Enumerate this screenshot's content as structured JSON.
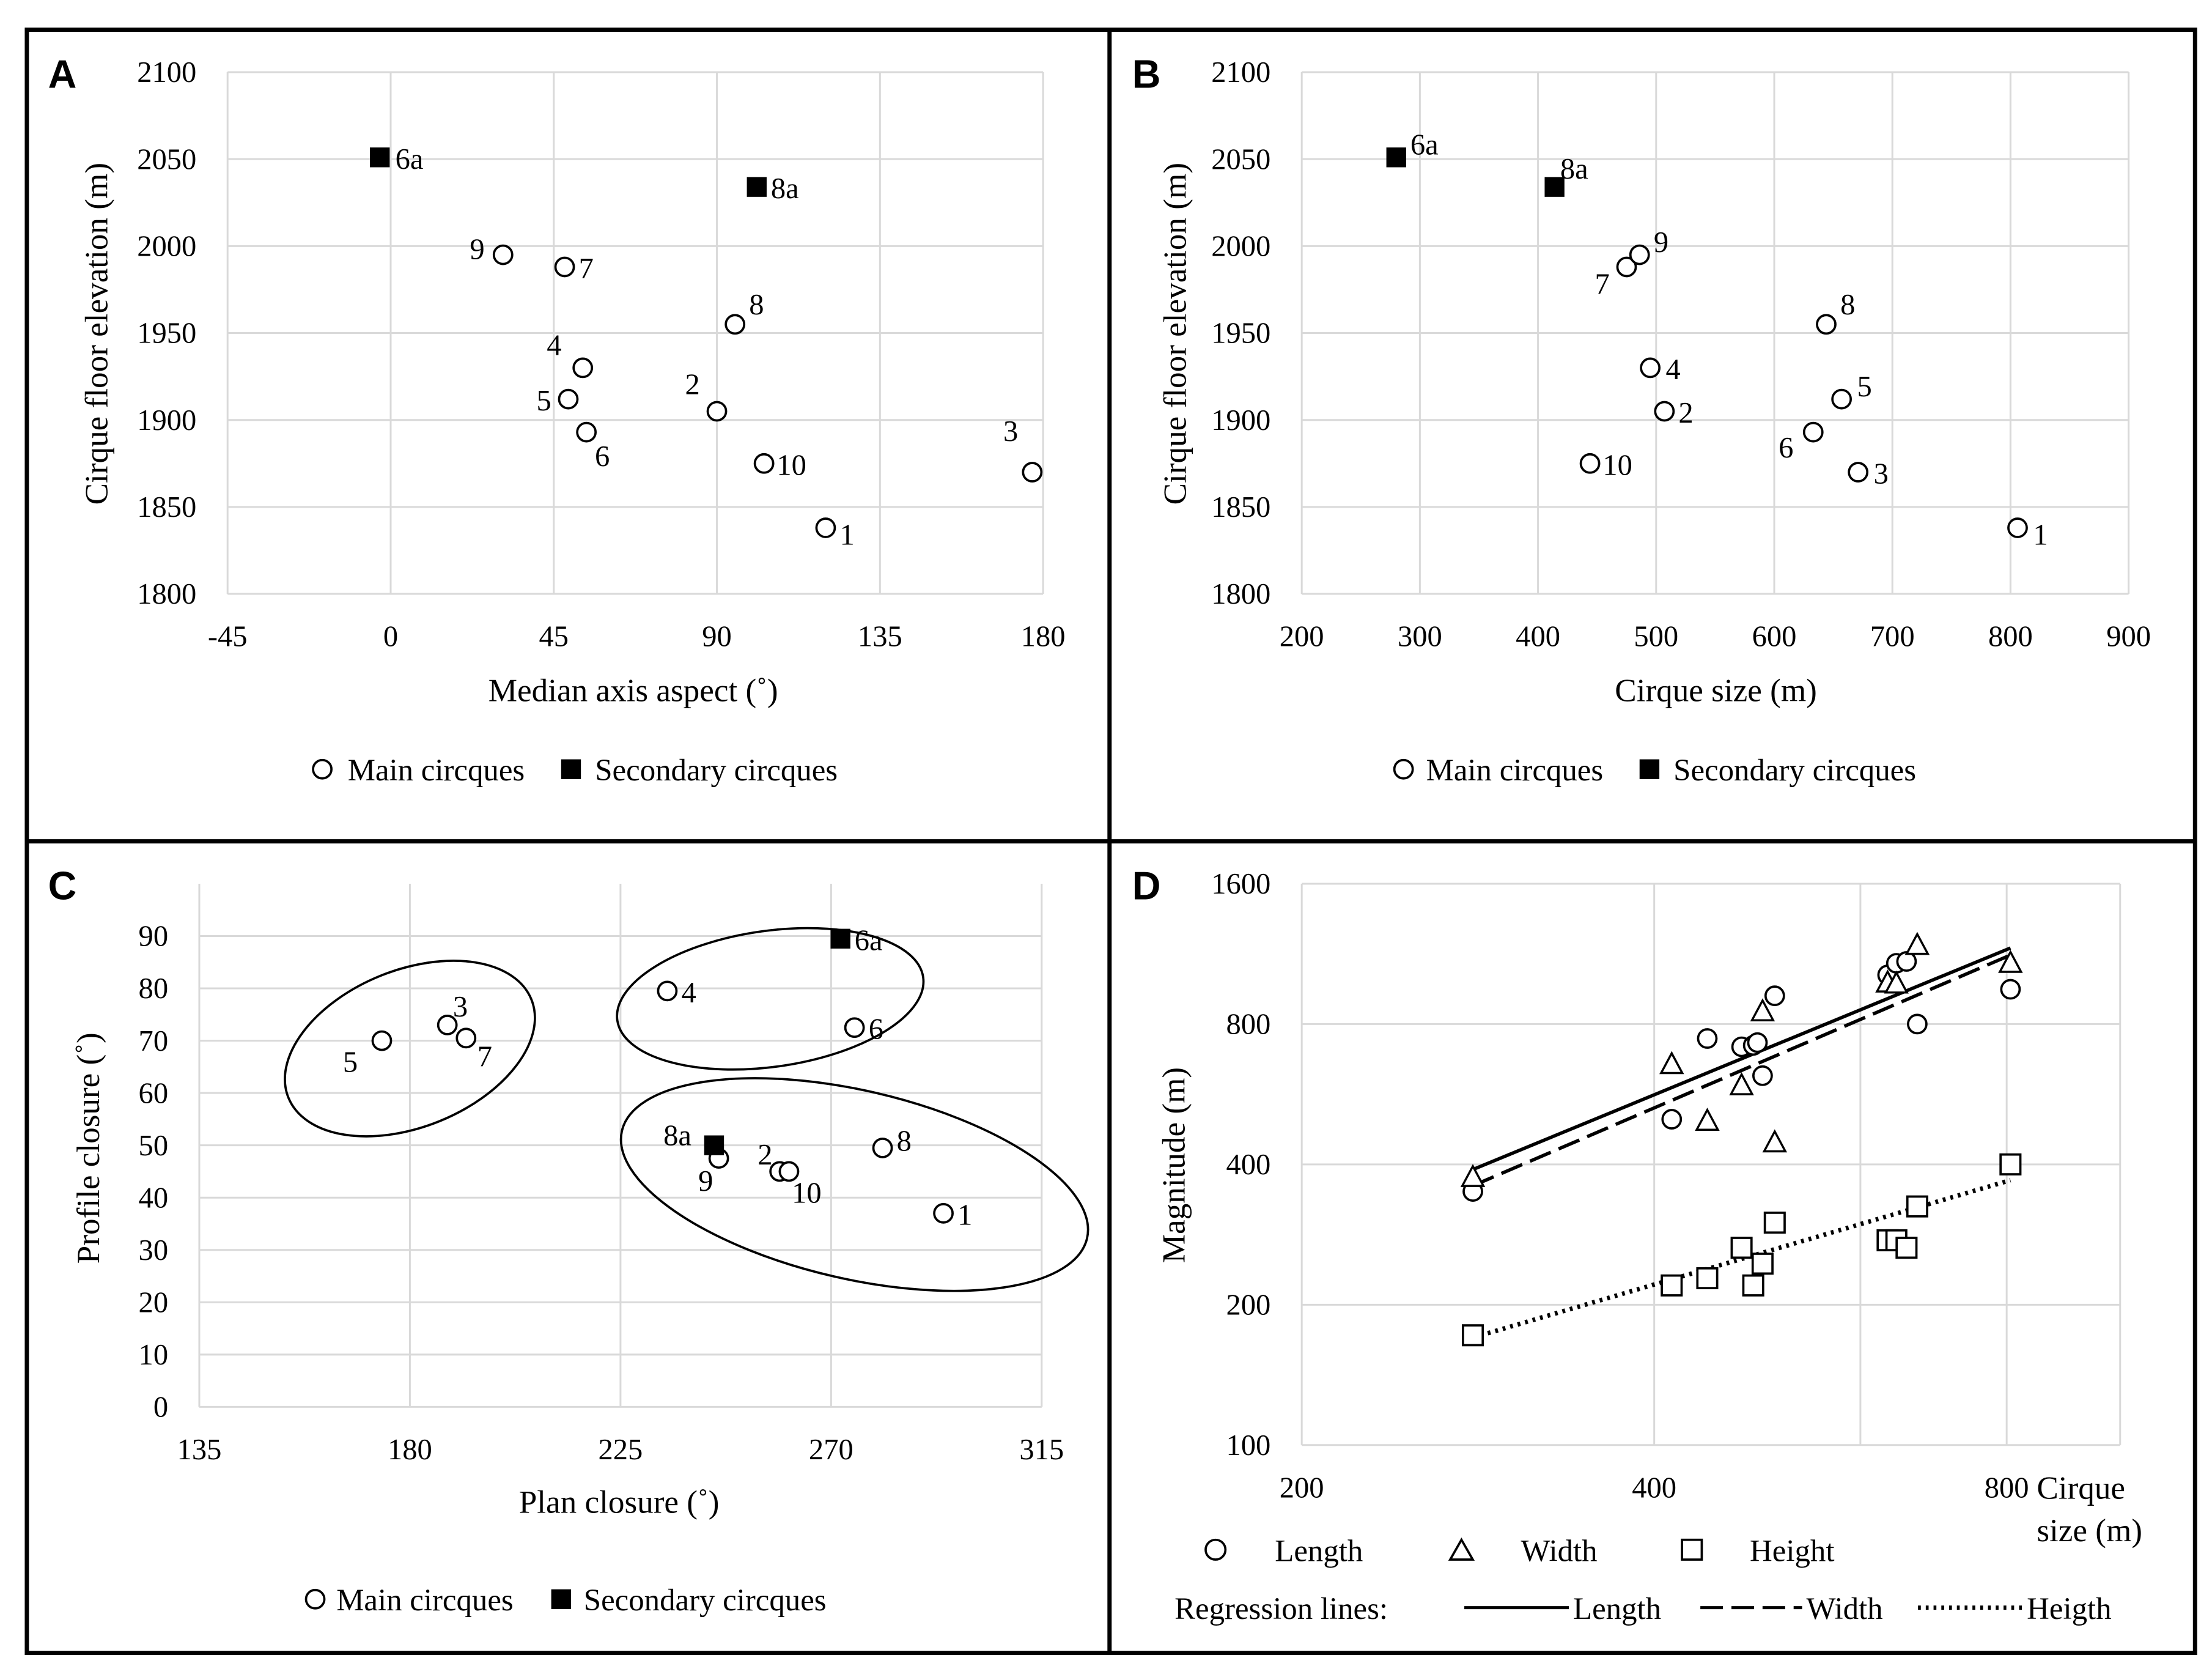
{
  "panels": [
    {
      "id": "A",
      "letter": "A",
      "chart_data": {
        "type": "scatter",
        "xlabel": "Median axis aspect (˚)",
        "ylabel": "Cirque floor elevation (m)",
        "xlim": [
          -45,
          180
        ],
        "ylim": [
          1800,
          2100
        ],
        "xticks": [
          -45,
          0,
          45,
          90,
          135,
          180
        ],
        "yticks": [
          1800,
          1850,
          1900,
          1950,
          2000,
          2050,
          2100
        ],
        "grid": true,
        "series": [
          {
            "name": "Main circques",
            "marker": "open-circle",
            "points": [
              {
                "label": "1",
                "x": 120,
                "y": 1838,
                "lx": 10,
                "ly": 4
              },
              {
                "label": "2",
                "x": 90,
                "y": 1905,
                "lx": -12,
                "ly": -20
              },
              {
                "label": "3",
                "x": 177,
                "y": 1870,
                "lx": -10,
                "ly": -30
              },
              {
                "label": "4",
                "x": 53,
                "y": 1930,
                "lx": -15,
                "ly": -17
              },
              {
                "label": "5",
                "x": 49,
                "y": 1912,
                "lx": -12,
                "ly": 0
              },
              {
                "label": "6",
                "x": 54,
                "y": 1893,
                "lx": 6,
                "ly": 16
              },
              {
                "label": "7",
                "x": 48,
                "y": 1988,
                "lx": 10,
                "ly": 0
              },
              {
                "label": "8",
                "x": 95,
                "y": 1955,
                "lx": 10,
                "ly": -15
              },
              {
                "label": "9",
                "x": 31,
                "y": 1995,
                "lx": -13,
                "ly": -5
              },
              {
                "label": "10",
                "x": 103,
                "y": 1875,
                "lx": 9,
                "ly": 0
              }
            ]
          },
          {
            "name": "Secondary circques",
            "marker": "filled-square",
            "points": [
              {
                "label": "6a",
                "x": -3,
                "y": 2051,
                "lx": 11,
                "ly": 0
              },
              {
                "label": "8a",
                "x": 101,
                "y": 2034,
                "lx": 10,
                "ly": 0
              }
            ]
          }
        ]
      }
    },
    {
      "id": "B",
      "letter": "B",
      "chart_data": {
        "type": "scatter",
        "xlabel": "Cirque size (m)",
        "ylabel": "Cirque floor elevation (m)",
        "xlim": [
          200,
          900
        ],
        "ylim": [
          1800,
          2100
        ],
        "xticks": [
          200,
          300,
          400,
          500,
          600,
          700,
          800,
          900
        ],
        "yticks": [
          1800,
          1850,
          1900,
          1950,
          2000,
          2050,
          2100
        ],
        "grid": true,
        "series": [
          {
            "name": "Main circques",
            "marker": "open-circle",
            "points": [
              {
                "label": "1",
                "x": 806,
                "y": 1838,
                "lx": 11,
                "ly": 4
              },
              {
                "label": "2",
                "x": 507,
                "y": 1905,
                "lx": 10,
                "ly": 0
              },
              {
                "label": "3",
                "x": 671,
                "y": 1870,
                "lx": 11,
                "ly": 0
              },
              {
                "label": "4",
                "x": 495,
                "y": 1930,
                "lx": 11,
                "ly": 0
              },
              {
                "label": "5",
                "x": 657,
                "y": 1912,
                "lx": 11,
                "ly": -10
              },
              {
                "label": "6",
                "x": 633,
                "y": 1893,
                "lx": -14,
                "ly": 10
              },
              {
                "label": "7",
                "x": 475,
                "y": 1988,
                "lx": -12,
                "ly": 11
              },
              {
                "label": "8",
                "x": 644,
                "y": 1955,
                "lx": 10,
                "ly": -15
              },
              {
                "label": "9",
                "x": 486,
                "y": 1995,
                "lx": 10,
                "ly": -10
              },
              {
                "label": "10",
                "x": 444,
                "y": 1875,
                "lx": 9,
                "ly": 0
              }
            ]
          },
          {
            "name": "Secondary circques",
            "marker": "filled-square",
            "points": [
              {
                "label": "6a",
                "x": 280,
                "y": 2051,
                "lx": 10,
                "ly": -10
              },
              {
                "label": "8a",
                "x": 414,
                "y": 2034,
                "lx": 4,
                "ly": -14
              }
            ]
          }
        ]
      }
    },
    {
      "id": "C",
      "letter": "C",
      "chart_data": {
        "type": "scatter",
        "xlabel": "Plan closure (˚)",
        "ylabel": "Profile closure (˚)",
        "xlim": [
          135,
          315
        ],
        "ylim": [
          0,
          100
        ],
        "xticks": [
          135,
          180,
          225,
          270,
          315
        ],
        "yticks": [
          0,
          10,
          20,
          30,
          40,
          50,
          60,
          70,
          80,
          90
        ],
        "grid": true,
        "series": [
          {
            "name": "Main circques",
            "marker": "open-circle",
            "points": [
              {
                "label": "1",
                "x": 294,
                "y": 37,
                "lx": 10,
                "ly": 0
              },
              {
                "label": "2",
                "x": 259,
                "y": 45,
                "lx": -5,
                "ly": -13
              },
              {
                "label": "3",
                "x": 188,
                "y": 73,
                "lx": 4,
                "ly": -14
              },
              {
                "label": "4",
                "x": 235,
                "y": 79.5,
                "lx": 10,
                "ly": 0
              },
              {
                "label": "5",
                "x": 174,
                "y": 70,
                "lx": -17,
                "ly": 14
              },
              {
                "label": "6",
                "x": 275,
                "y": 72.5,
                "lx": 10,
                "ly": 0
              },
              {
                "label": "7",
                "x": 192,
                "y": 70.5,
                "lx": 8,
                "ly": 12
              },
              {
                "label": "8",
                "x": 281,
                "y": 49.5,
                "lx": 10,
                "ly": -6
              },
              {
                "label": "9",
                "x": 246,
                "y": 47.5,
                "lx": -4,
                "ly": 15
              },
              {
                "label": "10",
                "x": 261,
                "y": 45,
                "lx": 2,
                "ly": 14
              }
            ]
          },
          {
            "name": "Secondary circques",
            "marker": "filled-square",
            "points": [
              {
                "label": "6a",
                "x": 272,
                "y": 89.5,
                "lx": 10,
                "ly": 0
              },
              {
                "label": "8a",
                "x": 245,
                "y": 50,
                "lx": -16,
                "ly": -8
              }
            ]
          }
        ],
        "groups": [
          {
            "cx": 180,
            "cy": 68.5,
            "rx": 28,
            "ry": 15,
            "rot": -22
          },
          {
            "cx": 257,
            "cy": 78,
            "rx": 33,
            "ry": 13,
            "rot": -8
          },
          {
            "cx": 275,
            "cy": 42.5,
            "rx": 51,
            "ry": 18,
            "rot": 13
          }
        ]
      }
    },
    {
      "id": "D",
      "letter": "D",
      "chart_data": {
        "type": "scatter",
        "scale": "log",
        "xlabel_line1": "Cirque",
        "xlabel_line2": "size (m)",
        "ylabel": "Magnitude (m)",
        "xlim": [
          200,
          1000
        ],
        "ylim": [
          100,
          1600
        ],
        "xticks": [
          200,
          400,
          800
        ],
        "yticks": [
          100,
          200,
          400,
          800,
          1600
        ],
        "xgrid": [
          200,
          400,
          600,
          800,
          1000
        ],
        "ygrid": [
          100,
          200,
          400,
          800,
          1600
        ],
        "grid": true,
        "series": [
          {
            "name": "Length",
            "marker": "open-circle",
            "points": [
              {
                "x": 280,
                "y": 350
              },
              {
                "x": 414,
                "y": 500
              },
              {
                "x": 444,
                "y": 745
              },
              {
                "x": 475,
                "y": 715
              },
              {
                "x": 486,
                "y": 720
              },
              {
                "x": 490,
                "y": 730
              },
              {
                "x": 495,
                "y": 620
              },
              {
                "x": 507,
                "y": 920
              },
              {
                "x": 633,
                "y": 1020
              },
              {
                "x": 644,
                "y": 1080
              },
              {
                "x": 657,
                "y": 1090
              },
              {
                "x": 671,
                "y": 800
              },
              {
                "x": 806,
                "y": 950
              }
            ]
          },
          {
            "name": "Width",
            "marker": "open-triangle",
            "points": [
              {
                "x": 280,
                "y": 375
              },
              {
                "x": 414,
                "y": 655
              },
              {
                "x": 444,
                "y": 495
              },
              {
                "x": 475,
                "y": 590
              },
              {
                "x": 495,
                "y": 850
              },
              {
                "x": 507,
                "y": 445
              },
              {
                "x": 633,
                "y": 980
              },
              {
                "x": 644,
                "y": 975
              },
              {
                "x": 671,
                "y": 1180
              },
              {
                "x": 806,
                "y": 1080
              }
            ]
          },
          {
            "name": "Height",
            "marker": "open-square",
            "points": [
              {
                "x": 280,
                "y": 172
              },
              {
                "x": 414,
                "y": 220
              },
              {
                "x": 444,
                "y": 228
              },
              {
                "x": 475,
                "y": 265
              },
              {
                "x": 486,
                "y": 220
              },
              {
                "x": 495,
                "y": 245
              },
              {
                "x": 507,
                "y": 300
              },
              {
                "x": 633,
                "y": 275
              },
              {
                "x": 644,
                "y": 275
              },
              {
                "x": 657,
                "y": 265
              },
              {
                "x": 671,
                "y": 325
              },
              {
                "x": 806,
                "y": 400
              }
            ]
          }
        ],
        "regression_lines": [
          {
            "name": "Length",
            "style": "solid",
            "x": [
              280,
              806
            ],
            "y": [
              390,
              1165
            ]
          },
          {
            "name": "Width",
            "style": "dashed",
            "x": [
              280,
              806
            ],
            "y": [
              360,
              1125
            ]
          },
          {
            "name": "Heigth",
            "style": "dotted",
            "x": [
              280,
              806
            ],
            "y": [
              170,
              370
            ]
          }
        ]
      }
    }
  ],
  "legends": {
    "abc": {
      "main": "Main circques",
      "secondary": "Secondary circques"
    },
    "d": {
      "length": "Length",
      "width": "Width",
      "height": "Height",
      "regression_title": "Regression lines:",
      "reg_length": "Length",
      "reg_width": "Width",
      "reg_height": "Heigth"
    }
  }
}
